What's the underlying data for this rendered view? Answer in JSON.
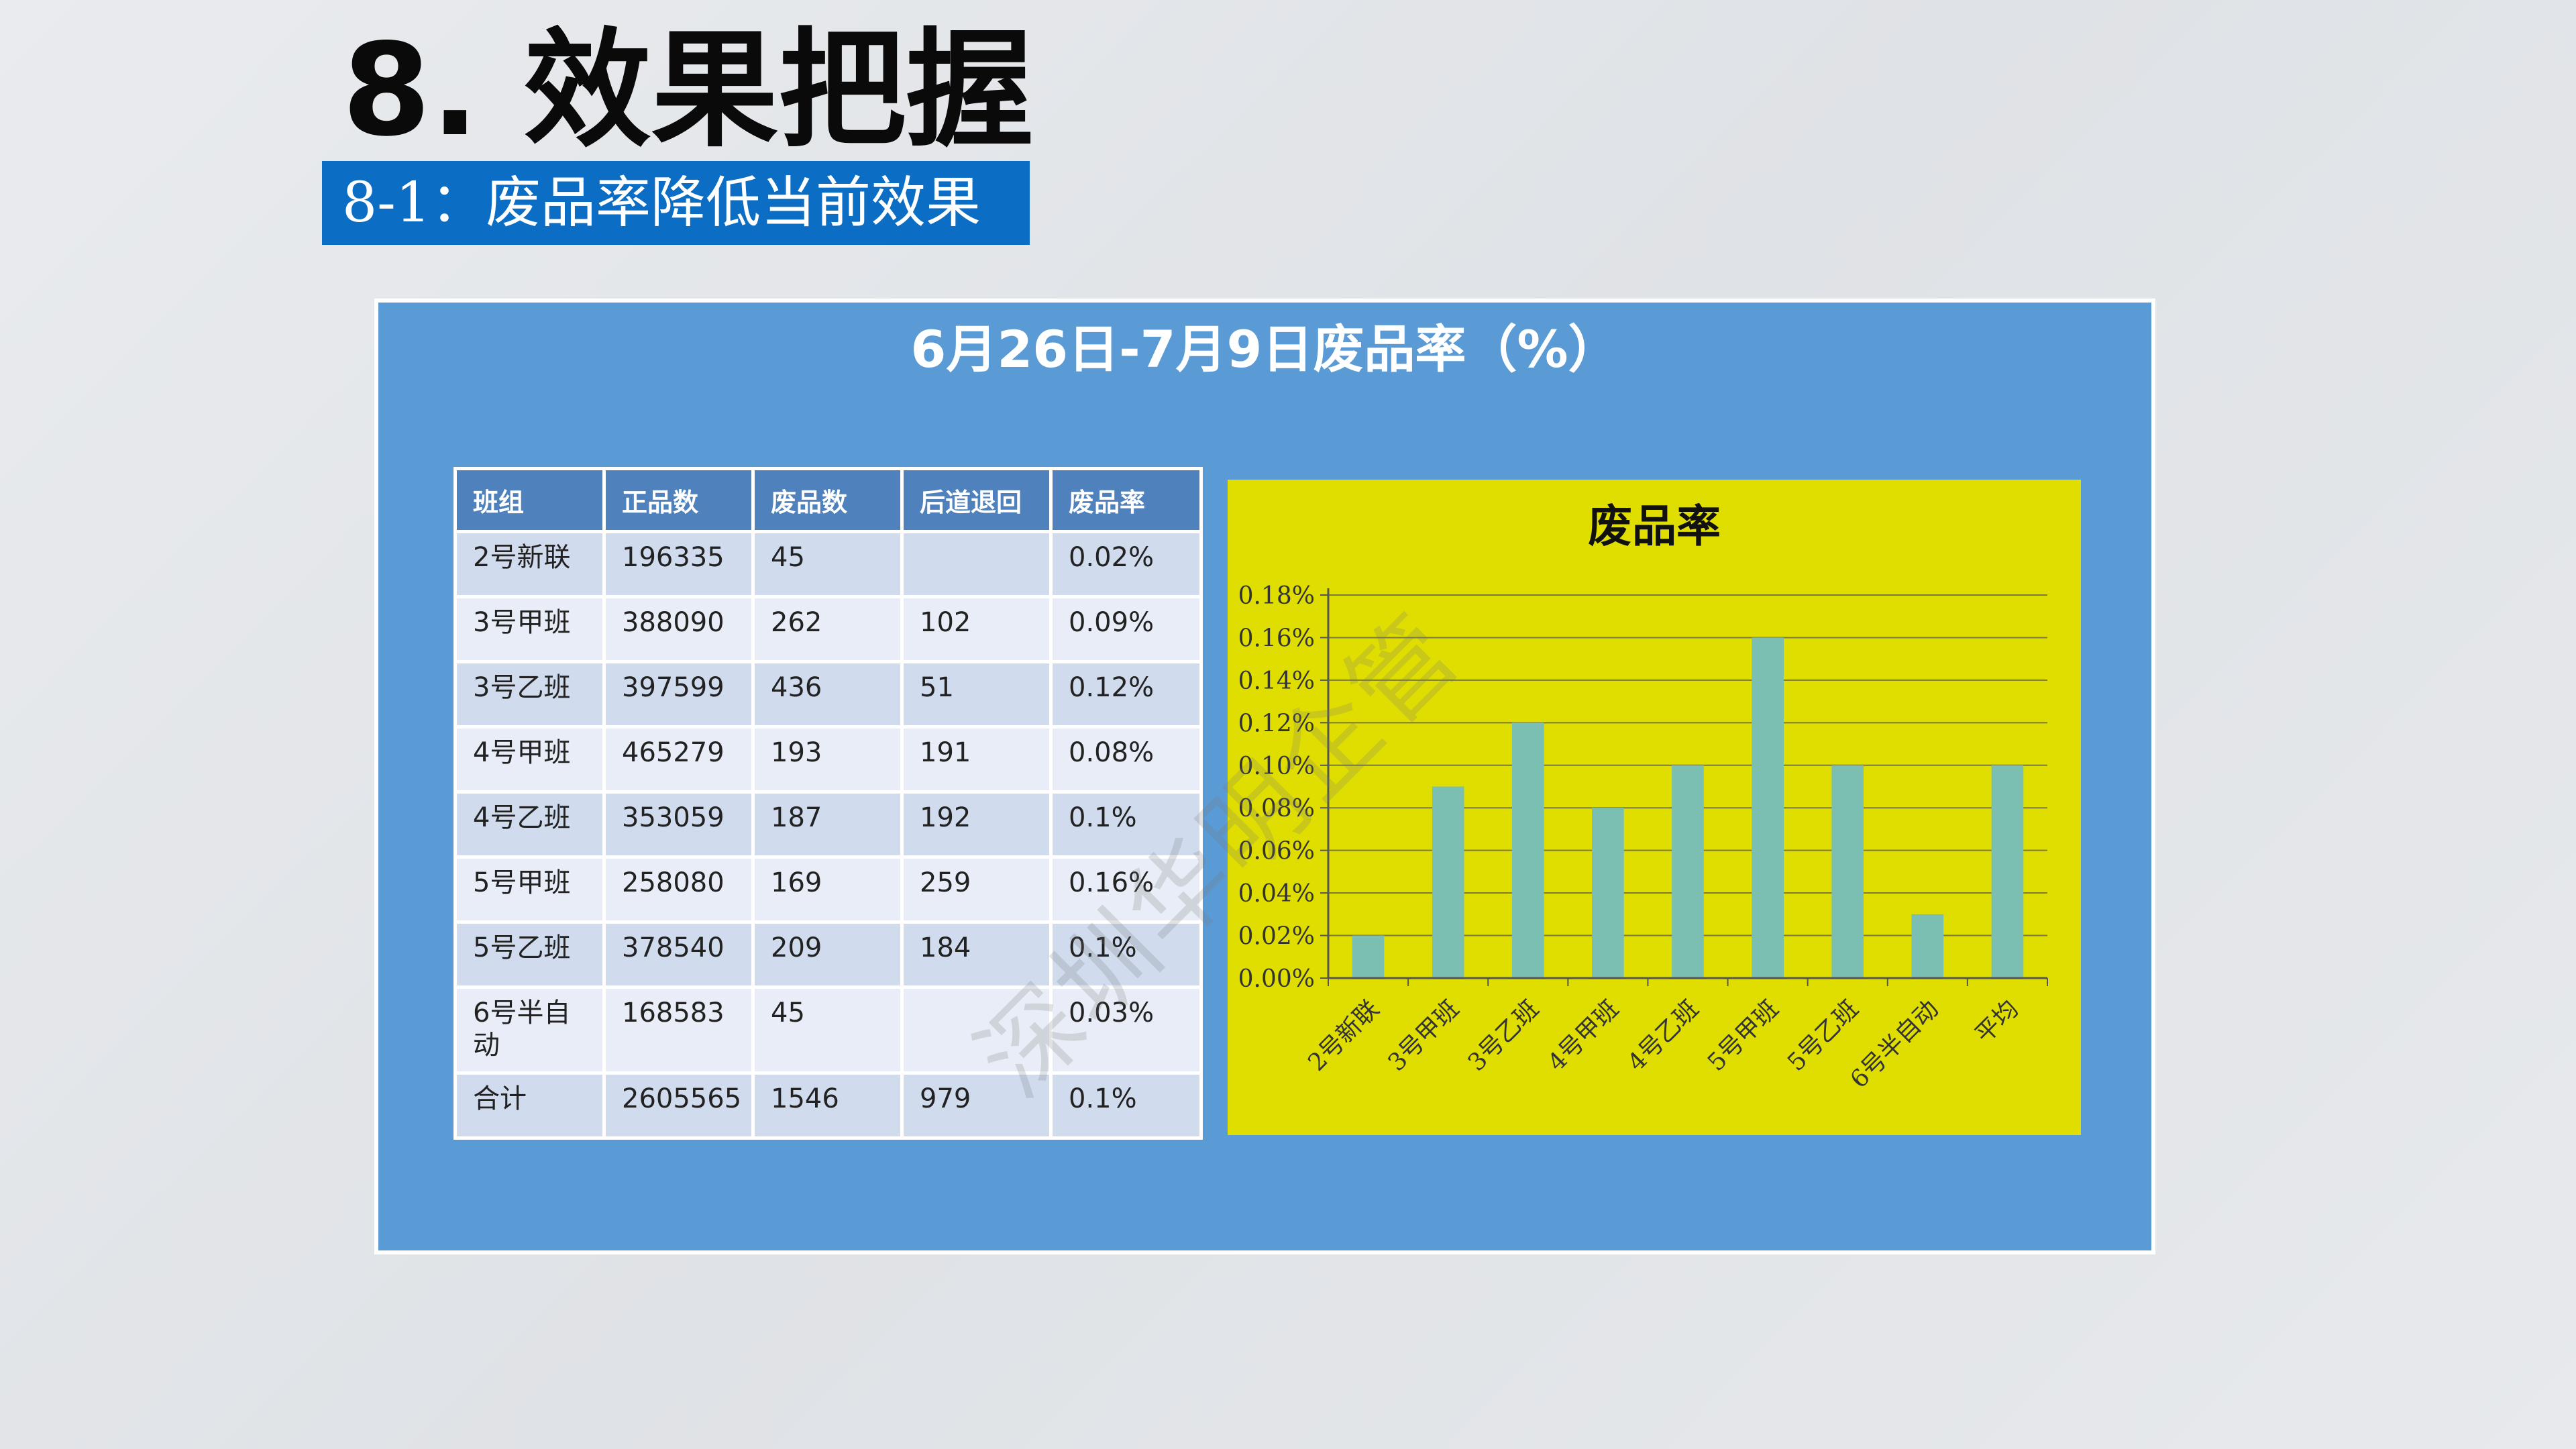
{
  "slide": {
    "title": "8. 效果把握",
    "subtitle": "8-1：废品率降低当前效果"
  },
  "panel": {
    "title": "6月26日-7月9日废品率（%）"
  },
  "table": {
    "headers": [
      "班组",
      "正品数",
      "废品数",
      "后道退回",
      "废品率"
    ],
    "rows": [
      [
        "2号新联",
        "196335",
        "45",
        "",
        "0.02%"
      ],
      [
        "3号甲班",
        "388090",
        "262",
        "102",
        "0.09%"
      ],
      [
        "3号乙班",
        "397599",
        "436",
        "51",
        "0.12%"
      ],
      [
        "4号甲班",
        "465279",
        "193",
        "191",
        "0.08%"
      ],
      [
        "4号乙班",
        "353059",
        "187",
        "192",
        "0.1%"
      ],
      [
        "5号甲班",
        "258080",
        "169",
        "259",
        "0.16%"
      ],
      [
        "5号乙班",
        "378540",
        "209",
        "184",
        "0.1%"
      ],
      [
        "6号半自动",
        "168583",
        "45",
        "",
        "0.03%"
      ],
      [
        "合计",
        "2605565",
        "1546",
        "979",
        "0.1%"
      ]
    ]
  },
  "chart_data": {
    "type": "bar",
    "title": "废品率",
    "categories": [
      "2号新联",
      "3号甲班",
      "3号乙班",
      "4号甲班",
      "4号乙班",
      "5号甲班",
      "5号乙班",
      "6号半自动",
      "平均"
    ],
    "values": [
      0.02,
      0.09,
      0.12,
      0.08,
      0.1,
      0.16,
      0.1,
      0.03,
      0.1
    ],
    "yticks": [
      "0.00%",
      "0.02%",
      "0.04%",
      "0.06%",
      "0.08%",
      "0.10%",
      "0.12%",
      "0.14%",
      "0.16%",
      "0.18%"
    ],
    "ylim": [
      0,
      0.18
    ],
    "grid": true,
    "legend": "none",
    "bar_color": "#7abfb1",
    "background_color": "#e0de00"
  },
  "watermark": "深圳华明企管",
  "colors": {
    "banner": "#0b6ec4",
    "panel": "#5b9bd5",
    "table_header": "#4f81bd"
  }
}
